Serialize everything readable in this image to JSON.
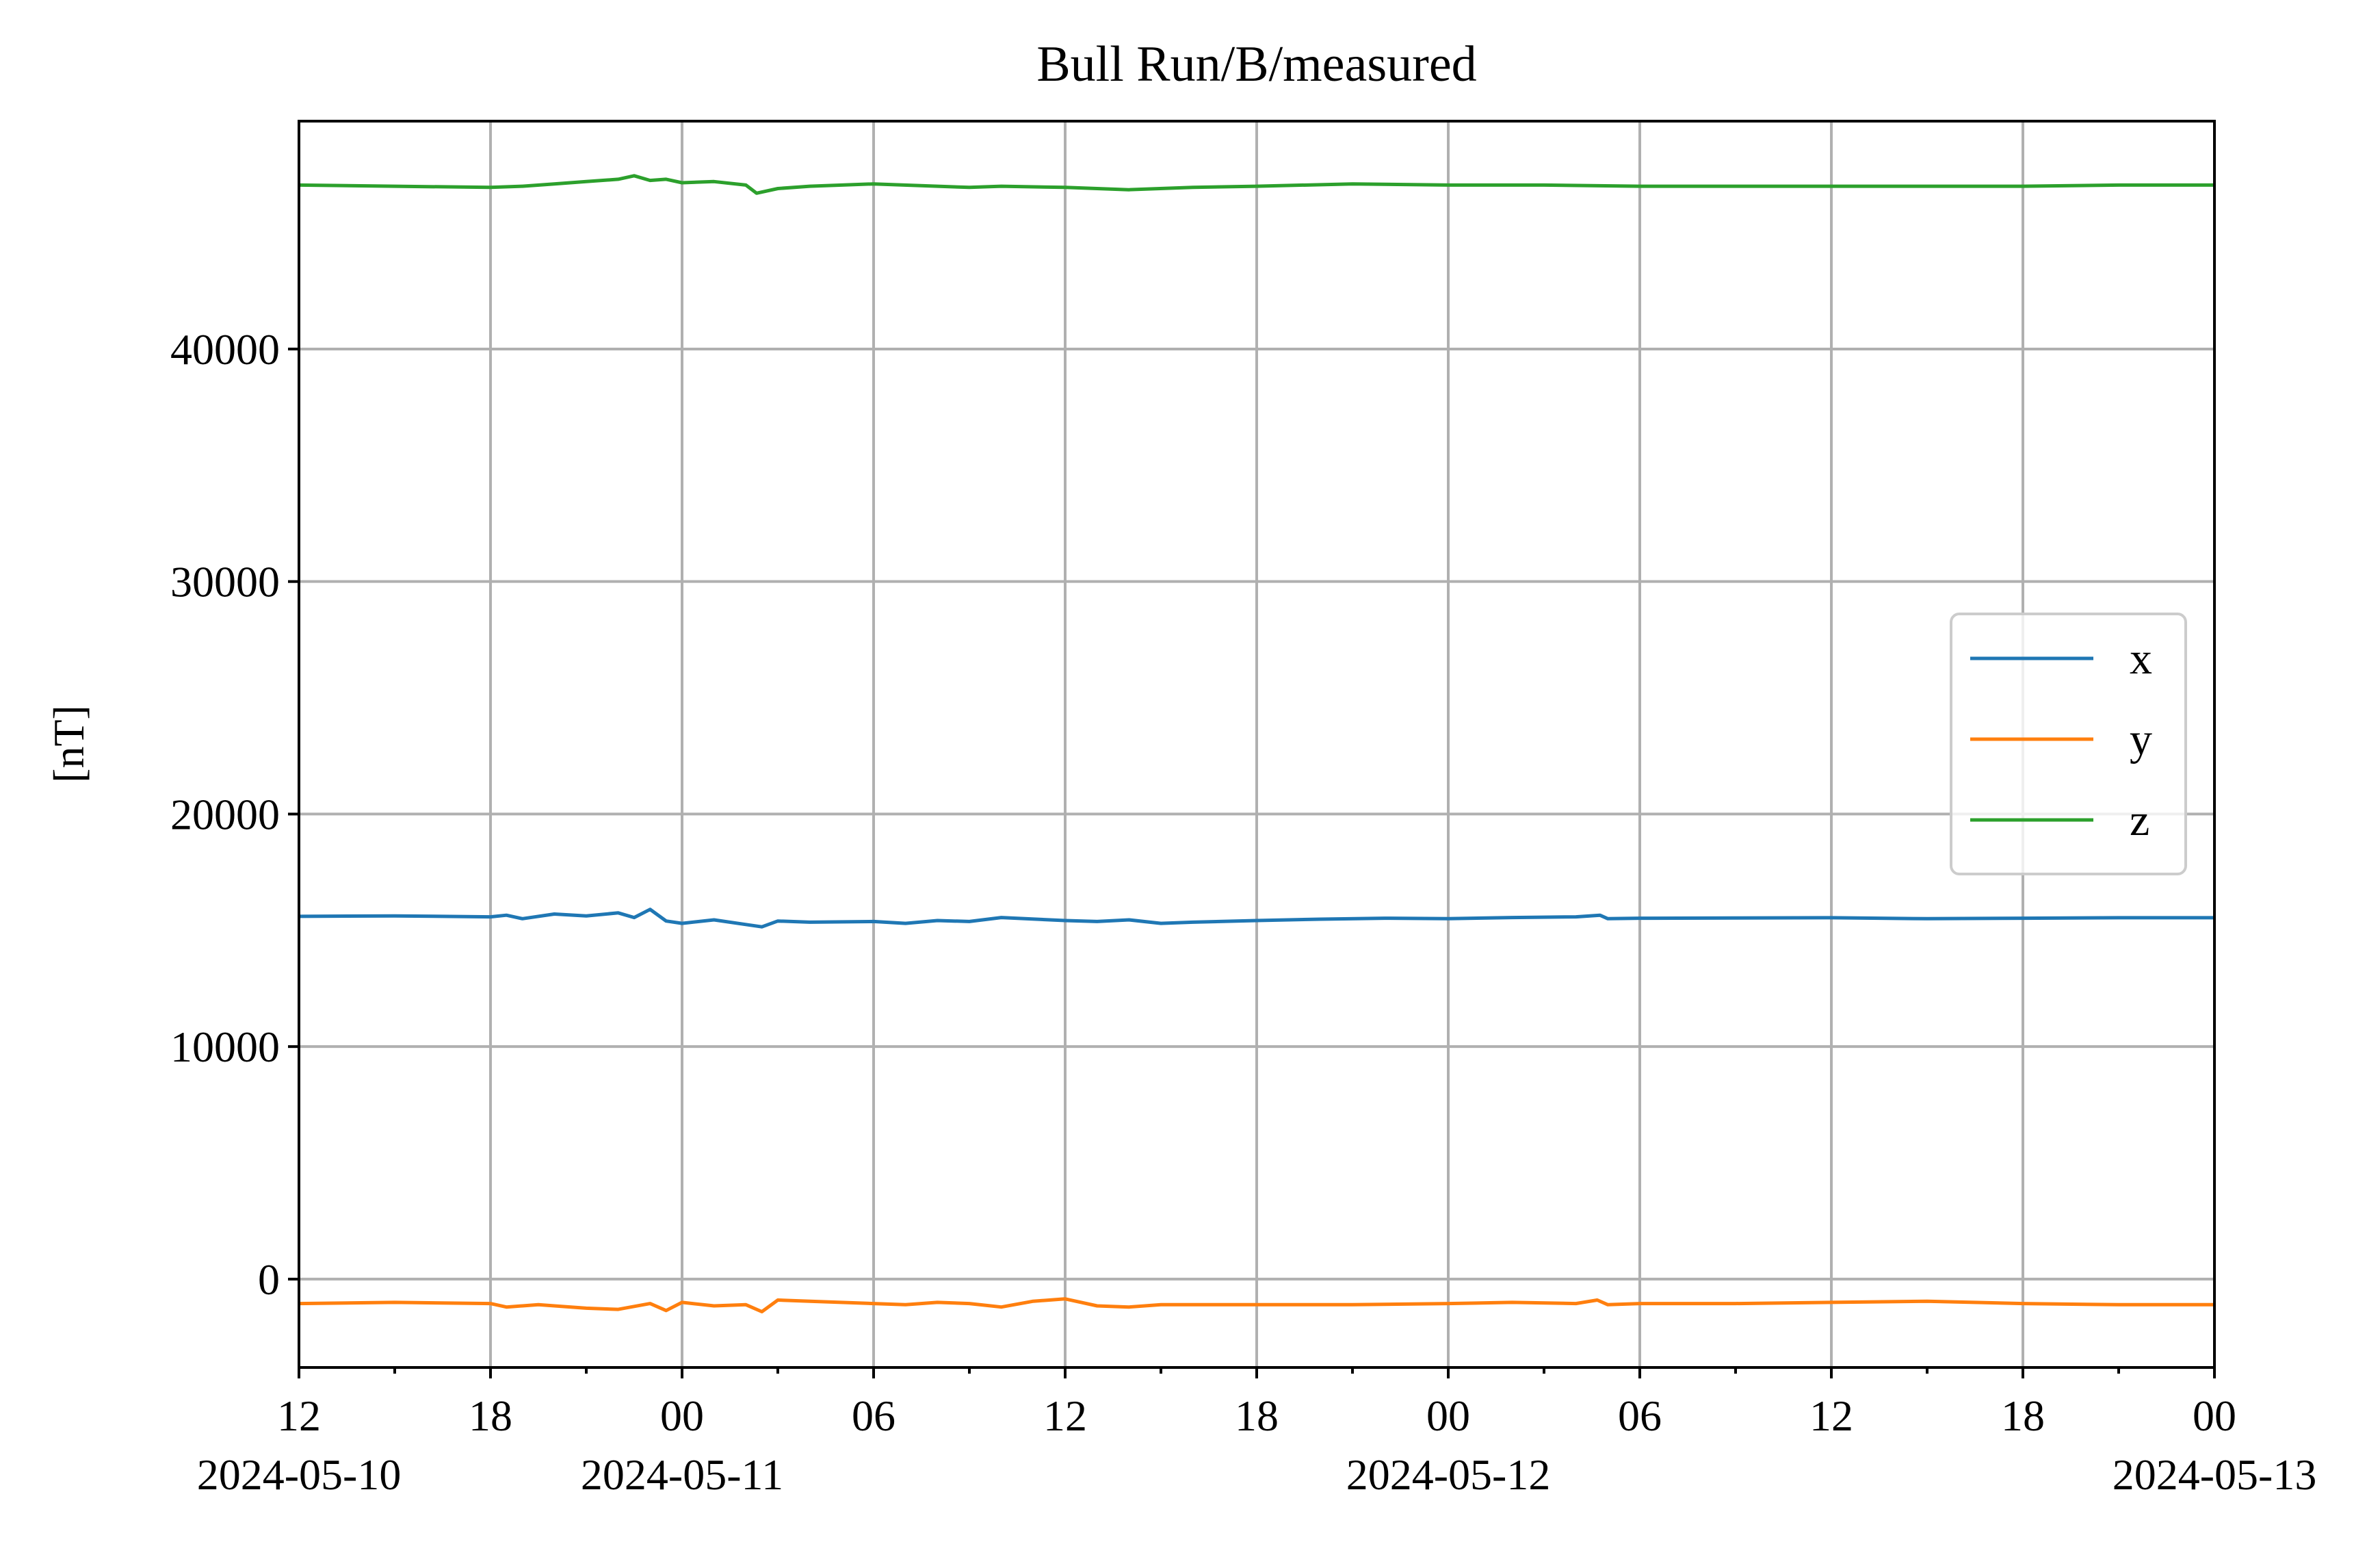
{
  "chart_data": {
    "type": "line",
    "title": "Bull Run/B/measured",
    "xlabel": "",
    "ylabel": "[nT]",
    "xlim": [
      "2024-05-10 12:00",
      "2024-05-13 00:00"
    ],
    "ylim": [
      -3800,
      49800
    ],
    "grid": true,
    "legend_position": "center-right",
    "y_ticks": [
      0,
      10000,
      20000,
      30000,
      40000
    ],
    "x_ticks": [
      {
        "t": "2024-05-10 12:00",
        "label": "12",
        "date": "2024-05-10"
      },
      {
        "t": "2024-05-10 18:00",
        "label": "18",
        "date": ""
      },
      {
        "t": "2024-05-11 00:00",
        "label": "00",
        "date": "2024-05-11"
      },
      {
        "t": "2024-05-11 06:00",
        "label": "06",
        "date": ""
      },
      {
        "t": "2024-05-11 12:00",
        "label": "12",
        "date": ""
      },
      {
        "t": "2024-05-11 18:00",
        "label": "18",
        "date": ""
      },
      {
        "t": "2024-05-12 00:00",
        "label": "00",
        "date": "2024-05-12"
      },
      {
        "t": "2024-05-12 06:00",
        "label": "06",
        "date": ""
      },
      {
        "t": "2024-05-12 12:00",
        "label": "12",
        "date": ""
      },
      {
        "t": "2024-05-12 18:00",
        "label": "18",
        "date": ""
      },
      {
        "t": "2024-05-13 00:00",
        "label": "00",
        "date": "2024-05-13"
      }
    ],
    "x_minor_ticks": [
      "2024-05-10 15:00",
      "2024-05-10 21:00",
      "2024-05-11 03:00",
      "2024-05-11 09:00",
      "2024-05-11 15:00",
      "2024-05-11 21:00",
      "2024-05-12 03:00",
      "2024-05-12 09:00",
      "2024-05-12 15:00",
      "2024-05-12 21:00"
    ],
    "series": [
      {
        "name": "x",
        "color": "#1f77b4",
        "points": [
          [
            "2024-05-10 12:00",
            15600
          ],
          [
            "2024-05-10 15:00",
            15620
          ],
          [
            "2024-05-10 18:00",
            15580
          ],
          [
            "2024-05-10 18:30",
            15650
          ],
          [
            "2024-05-10 19:00",
            15500
          ],
          [
            "2024-05-10 20:00",
            15700
          ],
          [
            "2024-05-10 21:00",
            15620
          ],
          [
            "2024-05-10 22:00",
            15750
          ],
          [
            "2024-05-10 22:30",
            15550
          ],
          [
            "2024-05-10 23:00",
            15900
          ],
          [
            "2024-05-10 23:30",
            15400
          ],
          [
            "2024-05-11 00:00",
            15300
          ],
          [
            "2024-05-11 01:00",
            15450
          ],
          [
            "2024-05-11 02:00",
            15250
          ],
          [
            "2024-05-11 02:30",
            15150
          ],
          [
            "2024-05-11 03:00",
            15400
          ],
          [
            "2024-05-11 04:00",
            15350
          ],
          [
            "2024-05-11 06:00",
            15380
          ],
          [
            "2024-05-11 07:00",
            15300
          ],
          [
            "2024-05-11 08:00",
            15420
          ],
          [
            "2024-05-11 09:00",
            15380
          ],
          [
            "2024-05-11 10:00",
            15550
          ],
          [
            "2024-05-11 12:00",
            15420
          ],
          [
            "2024-05-11 13:00",
            15380
          ],
          [
            "2024-05-11 14:00",
            15450
          ],
          [
            "2024-05-11 15:00",
            15300
          ],
          [
            "2024-05-11 16:00",
            15350
          ],
          [
            "2024-05-11 18:00",
            15420
          ],
          [
            "2024-05-11 20:00",
            15480
          ],
          [
            "2024-05-11 22:00",
            15520
          ],
          [
            "2024-05-12 00:00",
            15500
          ],
          [
            "2024-05-12 02:00",
            15550
          ],
          [
            "2024-05-12 04:00",
            15580
          ],
          [
            "2024-05-12 04:45",
            15650
          ],
          [
            "2024-05-12 05:00",
            15500
          ],
          [
            "2024-05-12 06:00",
            15520
          ],
          [
            "2024-05-12 09:00",
            15530
          ],
          [
            "2024-05-12 12:00",
            15540
          ],
          [
            "2024-05-12 15:00",
            15500
          ],
          [
            "2024-05-12 18:00",
            15520
          ],
          [
            "2024-05-12 21:00",
            15540
          ],
          [
            "2024-05-13 00:00",
            15540
          ]
        ]
      },
      {
        "name": "y",
        "color": "#ff7f0e",
        "points": [
          [
            "2024-05-10 12:00",
            -1050
          ],
          [
            "2024-05-10 15:00",
            -1000
          ],
          [
            "2024-05-10 18:00",
            -1050
          ],
          [
            "2024-05-10 18:30",
            -1200
          ],
          [
            "2024-05-10 19:30",
            -1100
          ],
          [
            "2024-05-10 21:00",
            -1250
          ],
          [
            "2024-05-10 22:00",
            -1300
          ],
          [
            "2024-05-10 23:00",
            -1050
          ],
          [
            "2024-05-10 23:30",
            -1350
          ],
          [
            "2024-05-11 00:00",
            -1000
          ],
          [
            "2024-05-11 01:00",
            -1150
          ],
          [
            "2024-05-11 02:00",
            -1100
          ],
          [
            "2024-05-11 02:30",
            -1400
          ],
          [
            "2024-05-11 03:00",
            -900
          ],
          [
            "2024-05-11 04:00",
            -950
          ],
          [
            "2024-05-11 06:00",
            -1050
          ],
          [
            "2024-05-11 07:00",
            -1100
          ],
          [
            "2024-05-11 08:00",
            -1000
          ],
          [
            "2024-05-11 09:00",
            -1050
          ],
          [
            "2024-05-11 10:00",
            -1200
          ],
          [
            "2024-05-11 11:00",
            -950
          ],
          [
            "2024-05-11 12:00",
            -850
          ],
          [
            "2024-05-11 13:00",
            -1150
          ],
          [
            "2024-05-11 14:00",
            -1200
          ],
          [
            "2024-05-11 15:00",
            -1100
          ],
          [
            "2024-05-11 18:00",
            -1100
          ],
          [
            "2024-05-11 21:00",
            -1100
          ],
          [
            "2024-05-12 00:00",
            -1050
          ],
          [
            "2024-05-12 02:00",
            -1000
          ],
          [
            "2024-05-12 04:00",
            -1050
          ],
          [
            "2024-05-12 04:40",
            -900
          ],
          [
            "2024-05-12 05:00",
            -1100
          ],
          [
            "2024-05-12 06:00",
            -1050
          ],
          [
            "2024-05-12 09:00",
            -1050
          ],
          [
            "2024-05-12 12:00",
            -1000
          ],
          [
            "2024-05-12 15:00",
            -950
          ],
          [
            "2024-05-12 18:00",
            -1050
          ],
          [
            "2024-05-12 21:00",
            -1100
          ],
          [
            "2024-05-13 00:00",
            -1100
          ]
        ]
      },
      {
        "name": "z",
        "color": "#2ca02c",
        "points": [
          [
            "2024-05-10 12:00",
            47050
          ],
          [
            "2024-05-10 15:00",
            47000
          ],
          [
            "2024-05-10 18:00",
            46950
          ],
          [
            "2024-05-10 19:00",
            47000
          ],
          [
            "2024-05-10 20:00",
            47100
          ],
          [
            "2024-05-10 21:00",
            47200
          ],
          [
            "2024-05-10 22:00",
            47300
          ],
          [
            "2024-05-10 22:30",
            47450
          ],
          [
            "2024-05-10 23:00",
            47250
          ],
          [
            "2024-05-10 23:30",
            47300
          ],
          [
            "2024-05-11 00:00",
            47150
          ],
          [
            "2024-05-11 01:00",
            47200
          ],
          [
            "2024-05-11 02:00",
            47050
          ],
          [
            "2024-05-11 02:20",
            46700
          ],
          [
            "2024-05-11 03:00",
            46900
          ],
          [
            "2024-05-11 04:00",
            47000
          ],
          [
            "2024-05-11 06:00",
            47100
          ],
          [
            "2024-05-11 08:00",
            47000
          ],
          [
            "2024-05-11 09:00",
            46950
          ],
          [
            "2024-05-11 10:00",
            47000
          ],
          [
            "2024-05-11 12:00",
            46950
          ],
          [
            "2024-05-11 14:00",
            46850
          ],
          [
            "2024-05-11 16:00",
            46950
          ],
          [
            "2024-05-11 18:00",
            47000
          ],
          [
            "2024-05-11 21:00",
            47100
          ],
          [
            "2024-05-12 00:00",
            47050
          ],
          [
            "2024-05-12 03:00",
            47050
          ],
          [
            "2024-05-12 06:00",
            47000
          ],
          [
            "2024-05-12 12:00",
            47000
          ],
          [
            "2024-05-12 18:00",
            47000
          ],
          [
            "2024-05-12 21:00",
            47050
          ],
          [
            "2024-05-13 00:00",
            47050
          ]
        ]
      }
    ]
  }
}
